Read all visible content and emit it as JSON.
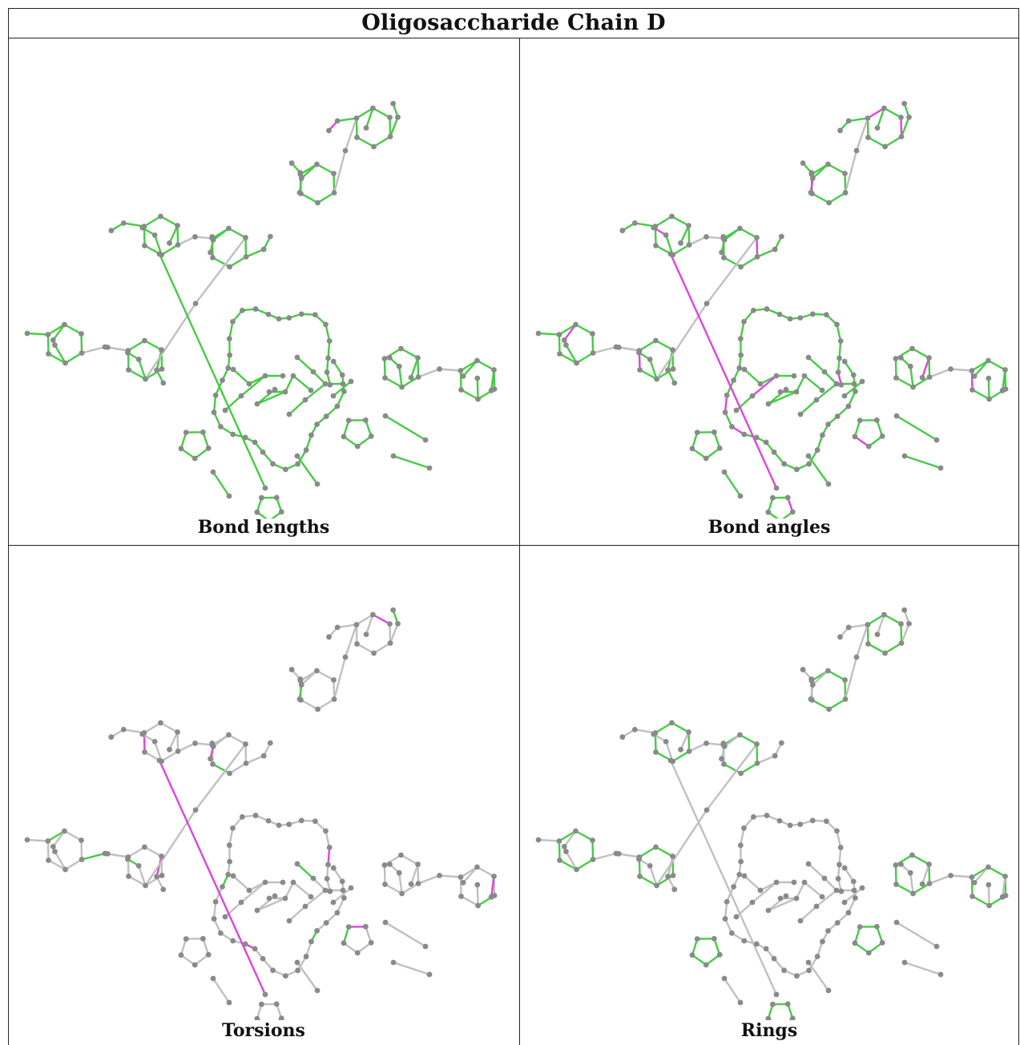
{
  "title": "Oligosaccharide Chain D",
  "panels": [
    {
      "caption": "Bond lengths",
      "variant": "lengths"
    },
    {
      "caption": "Bond angles",
      "variant": "angles"
    },
    {
      "caption": "Torsions",
      "variant": "torsions"
    },
    {
      "caption": "Rings",
      "variant": "rings"
    }
  ],
  "colors": {
    "good": "#44cc44",
    "outlier": "#dd44dd",
    "neutral": "#c0c0c0",
    "atom": "#8a8a8a",
    "border": "#222222"
  }
}
